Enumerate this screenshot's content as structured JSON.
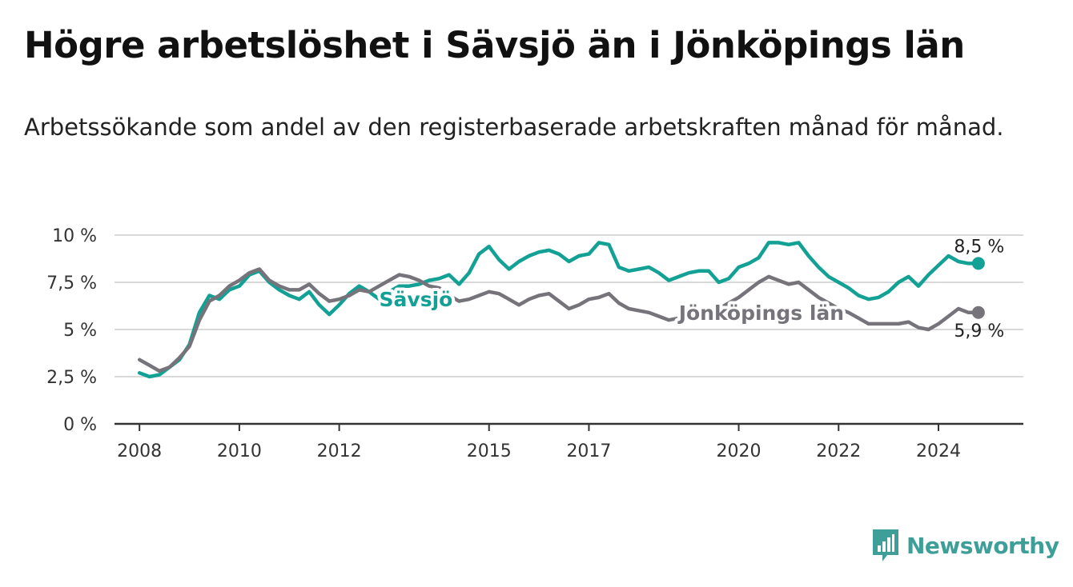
{
  "title": "Högre arbetslöshet i Sävsjö än i Jönköpings län",
  "subtitle": "Arbetssökande som andel av den registerbaserade arbetskraften månad för månad.",
  "brand": "Newsworthy",
  "colors": {
    "savsjo": "#13a195",
    "lan": "#76747a",
    "grid": "#d9d9d9",
    "axis": "#333333",
    "brand": "#3d9f98"
  },
  "chart_data": {
    "type": "line",
    "title": "Högre arbetslöshet i Sävsjö än i Jönköpings län",
    "xlabel": "",
    "ylabel": "",
    "xlim": [
      2007.5,
      2025.7
    ],
    "ylim": [
      0,
      10
    ],
    "y_ticks": [
      0,
      2.5,
      5,
      7.5,
      10
    ],
    "y_tick_labels": [
      "0 %",
      "2,5 %",
      "5 %",
      "7,5 %",
      "10 %"
    ],
    "x_ticks": [
      2008,
      2010,
      2012,
      2015,
      2017,
      2020,
      2022,
      2024
    ],
    "x_tick_labels": [
      "2008",
      "2010",
      "2012",
      "2015",
      "2017",
      "2020",
      "2022",
      "2024"
    ],
    "grid": true,
    "series": [
      {
        "name": "Sävsjö",
        "label_position": [
          2012.8,
          6.6
        ],
        "end_label": "8,5 %",
        "points": [
          [
            2008.0,
            2.7
          ],
          [
            2008.2,
            2.5
          ],
          [
            2008.4,
            2.6
          ],
          [
            2008.6,
            3.0
          ],
          [
            2008.8,
            3.4
          ],
          [
            2009.0,
            4.2
          ],
          [
            2009.2,
            5.9
          ],
          [
            2009.4,
            6.8
          ],
          [
            2009.6,
            6.6
          ],
          [
            2009.8,
            7.1
          ],
          [
            2010.0,
            7.3
          ],
          [
            2010.2,
            7.9
          ],
          [
            2010.4,
            8.1
          ],
          [
            2010.6,
            7.5
          ],
          [
            2010.8,
            7.1
          ],
          [
            2011.0,
            6.8
          ],
          [
            2011.2,
            6.6
          ],
          [
            2011.4,
            7.0
          ],
          [
            2011.6,
            6.3
          ],
          [
            2011.8,
            5.8
          ],
          [
            2012.0,
            6.3
          ],
          [
            2012.2,
            6.9
          ],
          [
            2012.4,
            7.3
          ],
          [
            2012.6,
            7.0
          ],
          [
            2012.8,
            6.6
          ],
          [
            2013.0,
            7.0
          ],
          [
            2013.2,
            7.3
          ],
          [
            2013.4,
            7.3
          ],
          [
            2013.6,
            7.4
          ],
          [
            2013.8,
            7.6
          ],
          [
            2014.0,
            7.7
          ],
          [
            2014.2,
            7.9
          ],
          [
            2014.4,
            7.4
          ],
          [
            2014.6,
            8.0
          ],
          [
            2014.8,
            9.0
          ],
          [
            2015.0,
            9.4
          ],
          [
            2015.2,
            8.7
          ],
          [
            2015.4,
            8.2
          ],
          [
            2015.6,
            8.6
          ],
          [
            2015.8,
            8.9
          ],
          [
            2016.0,
            9.1
          ],
          [
            2016.2,
            9.2
          ],
          [
            2016.4,
            9.0
          ],
          [
            2016.6,
            8.6
          ],
          [
            2016.8,
            8.9
          ],
          [
            2017.0,
            9.0
          ],
          [
            2017.2,
            9.6
          ],
          [
            2017.4,
            9.5
          ],
          [
            2017.6,
            8.3
          ],
          [
            2017.8,
            8.1
          ],
          [
            2018.0,
            8.2
          ],
          [
            2018.2,
            8.3
          ],
          [
            2018.4,
            8.0
          ],
          [
            2018.6,
            7.6
          ],
          [
            2018.8,
            7.8
          ],
          [
            2019.0,
            8.0
          ],
          [
            2019.2,
            8.1
          ],
          [
            2019.4,
            8.1
          ],
          [
            2019.6,
            7.5
          ],
          [
            2019.8,
            7.7
          ],
          [
            2020.0,
            8.3
          ],
          [
            2020.2,
            8.5
          ],
          [
            2020.4,
            8.8
          ],
          [
            2020.6,
            9.6
          ],
          [
            2020.8,
            9.6
          ],
          [
            2021.0,
            9.5
          ],
          [
            2021.2,
            9.6
          ],
          [
            2021.4,
            8.9
          ],
          [
            2021.6,
            8.3
          ],
          [
            2021.8,
            7.8
          ],
          [
            2022.0,
            7.5
          ],
          [
            2022.2,
            7.2
          ],
          [
            2022.4,
            6.8
          ],
          [
            2022.6,
            6.6
          ],
          [
            2022.8,
            6.7
          ],
          [
            2023.0,
            7.0
          ],
          [
            2023.2,
            7.5
          ],
          [
            2023.4,
            7.8
          ],
          [
            2023.6,
            7.3
          ],
          [
            2023.8,
            7.9
          ],
          [
            2024.0,
            8.4
          ],
          [
            2024.2,
            8.9
          ],
          [
            2024.4,
            8.6
          ],
          [
            2024.6,
            8.5
          ],
          [
            2024.8,
            8.5
          ]
        ]
      },
      {
        "name": "Jönköpings län",
        "label_position": [
          2018.8,
          5.9
        ],
        "end_label": "5,9 %",
        "points": [
          [
            2008.0,
            3.4
          ],
          [
            2008.2,
            3.1
          ],
          [
            2008.4,
            2.8
          ],
          [
            2008.6,
            3.0
          ],
          [
            2008.8,
            3.5
          ],
          [
            2009.0,
            4.1
          ],
          [
            2009.2,
            5.5
          ],
          [
            2009.4,
            6.5
          ],
          [
            2009.6,
            6.8
          ],
          [
            2009.8,
            7.3
          ],
          [
            2010.0,
            7.6
          ],
          [
            2010.2,
            8.0
          ],
          [
            2010.4,
            8.2
          ],
          [
            2010.6,
            7.6
          ],
          [
            2010.8,
            7.3
          ],
          [
            2011.0,
            7.1
          ],
          [
            2011.2,
            7.1
          ],
          [
            2011.4,
            7.4
          ],
          [
            2011.6,
            6.9
          ],
          [
            2011.8,
            6.5
          ],
          [
            2012.0,
            6.6
          ],
          [
            2012.2,
            6.8
          ],
          [
            2012.4,
            7.1
          ],
          [
            2012.6,
            7.0
          ],
          [
            2012.8,
            7.3
          ],
          [
            2013.0,
            7.6
          ],
          [
            2013.2,
            7.9
          ],
          [
            2013.4,
            7.8
          ],
          [
            2013.6,
            7.6
          ],
          [
            2013.8,
            7.3
          ],
          [
            2014.0,
            7.2
          ],
          [
            2014.2,
            6.8
          ],
          [
            2014.4,
            6.5
          ],
          [
            2014.6,
            6.6
          ],
          [
            2014.8,
            6.8
          ],
          [
            2015.0,
            7.0
          ],
          [
            2015.2,
            6.9
          ],
          [
            2015.4,
            6.6
          ],
          [
            2015.6,
            6.3
          ],
          [
            2015.8,
            6.6
          ],
          [
            2016.0,
            6.8
          ],
          [
            2016.2,
            6.9
          ],
          [
            2016.4,
            6.5
          ],
          [
            2016.6,
            6.1
          ],
          [
            2016.8,
            6.3
          ],
          [
            2017.0,
            6.6
          ],
          [
            2017.2,
            6.7
          ],
          [
            2017.4,
            6.9
          ],
          [
            2017.6,
            6.4
          ],
          [
            2017.8,
            6.1
          ],
          [
            2018.0,
            6.0
          ],
          [
            2018.2,
            5.9
          ],
          [
            2018.4,
            5.7
          ],
          [
            2018.6,
            5.5
          ],
          [
            2018.8,
            5.6
          ],
          [
            2019.0,
            5.7
          ],
          [
            2019.2,
            5.8
          ],
          [
            2019.4,
            6.0
          ],
          [
            2019.6,
            6.1
          ],
          [
            2019.8,
            6.4
          ],
          [
            2020.0,
            6.7
          ],
          [
            2020.2,
            7.1
          ],
          [
            2020.4,
            7.5
          ],
          [
            2020.6,
            7.8
          ],
          [
            2020.8,
            7.6
          ],
          [
            2021.0,
            7.4
          ],
          [
            2021.2,
            7.5
          ],
          [
            2021.4,
            7.1
          ],
          [
            2021.6,
            6.7
          ],
          [
            2021.8,
            6.4
          ],
          [
            2022.0,
            6.1
          ],
          [
            2022.2,
            5.9
          ],
          [
            2022.4,
            5.6
          ],
          [
            2022.6,
            5.3
          ],
          [
            2022.8,
            5.3
          ],
          [
            2023.0,
            5.3
          ],
          [
            2023.2,
            5.3
          ],
          [
            2023.4,
            5.4
          ],
          [
            2023.6,
            5.1
          ],
          [
            2023.8,
            5.0
          ],
          [
            2024.0,
            5.3
          ],
          [
            2024.2,
            5.7
          ],
          [
            2024.4,
            6.1
          ],
          [
            2024.6,
            5.9
          ],
          [
            2024.8,
            5.9
          ]
        ]
      }
    ]
  }
}
